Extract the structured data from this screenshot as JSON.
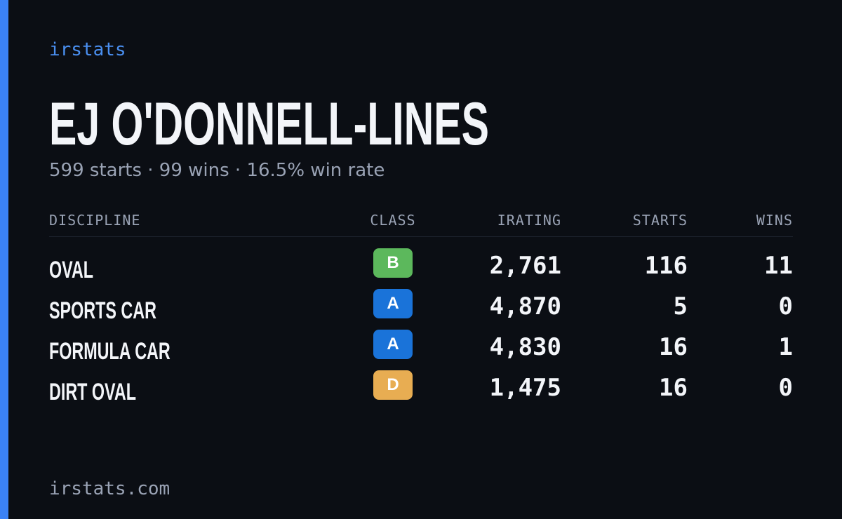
{
  "brand": "irstats",
  "title": "EJ O'DONNELL-LINES",
  "subtitle": "599 starts · 99 wins · 16.5% win rate",
  "table": {
    "headers": [
      "DISCIPLINE",
      "CLASS",
      "IRATING",
      "STARTS",
      "WINS"
    ],
    "rows": [
      [
        "OVAL",
        "B",
        "2,761",
        "116",
        "11"
      ],
      [
        "SPORTS CAR",
        "A",
        "4,870",
        "5",
        "0"
      ],
      [
        "FORMULA CAR",
        "A",
        "4,830",
        "16",
        "1"
      ],
      [
        "DIRT OVAL",
        "D",
        "1,475",
        "16",
        "0"
      ]
    ],
    "badge_colors": {
      "A": "#1a73d9",
      "B": "#5cb85c",
      "D": "#e8ad52"
    }
  },
  "footer": "irstats.com"
}
